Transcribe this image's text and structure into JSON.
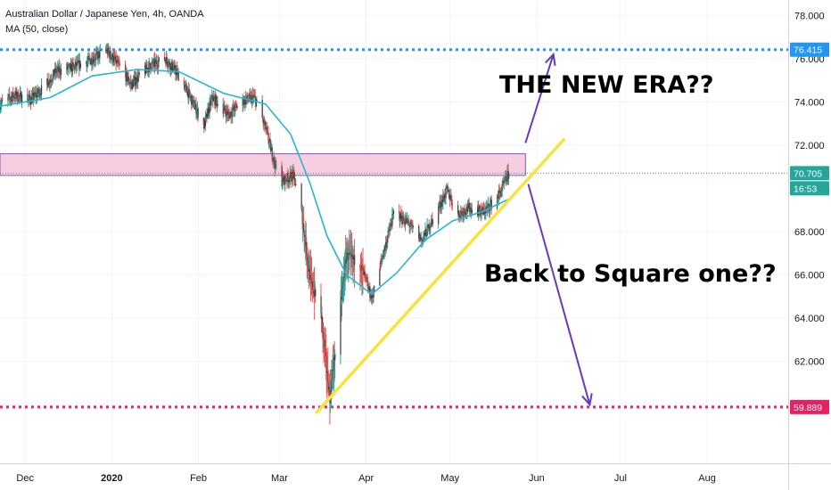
{
  "header": {
    "title": "Australian Dollar / Japanese Yen, 4h, OANDA",
    "indicator": "MA (50, close)"
  },
  "annotations": {
    "new_era": "THE NEW ERA??",
    "back_to_square": "Back to Square one??"
  },
  "colors": {
    "up": "#26a69a",
    "down": "#ef5350",
    "candle_body": "#3c3c3c",
    "ma": "#26b5d6",
    "resistance_line": "#2196f3",
    "support_line": "#e91e63",
    "zone_fill": "#f9cde0",
    "zone_border": "#7e57c2",
    "trendline": "#f7e33b",
    "arrow": "#673ab7",
    "current_tag": "#26a69a",
    "grid": "#f0f3fa"
  },
  "chart_data": {
    "type": "candlestick",
    "symbol": "Australian Dollar / Japanese Yen",
    "timeframe": "4h",
    "source": "OANDA",
    "ylim": [
      57.0,
      79.0
    ],
    "y_ticks": [
      "78.000",
      "76.000",
      "74.000",
      "72.000",
      "68.000",
      "66.000",
      "64.000",
      "62.000",
      "60.000"
    ],
    "x_ticks": [
      {
        "label": "Dec",
        "bold": false
      },
      {
        "label": "2020",
        "bold": true
      },
      {
        "label": "Feb",
        "bold": false
      },
      {
        "label": "Mar",
        "bold": false
      },
      {
        "label": "Apr",
        "bold": false
      },
      {
        "label": "May",
        "bold": false
      },
      {
        "label": "Jun",
        "bold": false
      },
      {
        "label": "Jul",
        "bold": false
      },
      {
        "label": "Aug",
        "bold": false
      }
    ],
    "price_path": [
      [
        "2019-11-22",
        73.9
      ],
      [
        "2019-11-27",
        74.3
      ],
      [
        "2019-12-03",
        74.1
      ],
      [
        "2019-12-08",
        74.7
      ],
      [
        "2019-12-12",
        75.4
      ],
      [
        "2019-12-18",
        75.6
      ],
      [
        "2019-12-24",
        75.9
      ],
      [
        "2019-12-30",
        76.4
      ],
      [
        "2020-01-04",
        75.6
      ],
      [
        "2020-01-08",
        74.8
      ],
      [
        "2020-01-14",
        75.6
      ],
      [
        "2020-01-20",
        76.0
      ],
      [
        "2020-01-24",
        75.4
      ],
      [
        "2020-01-28",
        74.5
      ],
      [
        "2020-02-03",
        72.9
      ],
      [
        "2020-02-06",
        74.2
      ],
      [
        "2020-02-12",
        73.4
      ],
      [
        "2020-02-16",
        74.0
      ],
      [
        "2020-02-21",
        74.2
      ],
      [
        "2020-02-25",
        72.8
      ],
      [
        "2020-03-01",
        70.3
      ],
      [
        "2020-03-06",
        70.6
      ],
      [
        "2020-03-09",
        68.8
      ],
      [
        "2020-03-12",
        65.8
      ],
      [
        "2020-03-16",
        64.1
      ],
      [
        "2020-03-19",
        60.3
      ],
      [
        "2020-03-22",
        63.7
      ],
      [
        "2020-03-25",
        66.9
      ],
      [
        "2020-03-30",
        66.5
      ],
      [
        "2020-04-03",
        64.9
      ],
      [
        "2020-04-07",
        66.9
      ],
      [
        "2020-04-11",
        68.9
      ],
      [
        "2020-04-16",
        68.4
      ],
      [
        "2020-04-21",
        67.6
      ],
      [
        "2020-04-25",
        68.6
      ],
      [
        "2020-04-30",
        69.9
      ],
      [
        "2020-05-04",
        68.8
      ],
      [
        "2020-05-08",
        69.1
      ],
      [
        "2020-05-13",
        68.9
      ],
      [
        "2020-05-16",
        69.3
      ],
      [
        "2020-05-19",
        69.8
      ],
      [
        "2020-05-22",
        70.7
      ]
    ],
    "ma_50": [
      [
        "2019-11-22",
        73.8
      ],
      [
        "2019-12-10",
        74.2
      ],
      [
        "2019-12-25",
        75.2
      ],
      [
        "2020-01-10",
        75.5
      ],
      [
        "2020-01-25",
        75.4
      ],
      [
        "2020-02-10",
        74.4
      ],
      [
        "2020-02-25",
        73.9
      ],
      [
        "2020-03-05",
        72.5
      ],
      [
        "2020-03-12",
        70.2
      ],
      [
        "2020-03-18",
        67.8
      ],
      [
        "2020-03-25",
        66.0
      ],
      [
        "2020-04-03",
        65.1
      ],
      [
        "2020-04-12",
        66.1
      ],
      [
        "2020-04-22",
        67.6
      ],
      [
        "2020-05-02",
        68.5
      ],
      [
        "2020-05-12",
        68.9
      ],
      [
        "2020-05-22",
        69.5
      ]
    ],
    "levels": [
      {
        "name": "resistance",
        "value": 76.415,
        "label": "76.415",
        "style": "dotted"
      },
      {
        "name": "support",
        "value": 59.889,
        "label": "59.889",
        "style": "dotted"
      }
    ],
    "current_price": {
      "value": 70.705,
      "label": "70.705",
      "countdown": "16:53"
    },
    "zone": {
      "start": "2019-11-22",
      "end": "2020-05-28",
      "low": 70.6,
      "high": 71.6
    },
    "trendline": {
      "start": [
        "2020-03-14",
        59.6
      ],
      "end": [
        "2020-06-11",
        72.3
      ]
    },
    "arrows": [
      {
        "name": "up",
        "from": [
          "2020-05-28",
          72.1
        ],
        "to": [
          "2020-06-07",
          76.2
        ]
      },
      {
        "name": "down",
        "from": [
          "2020-05-29",
          70.2
        ],
        "to": [
          "2020-06-20",
          60.0
        ]
      }
    ]
  }
}
